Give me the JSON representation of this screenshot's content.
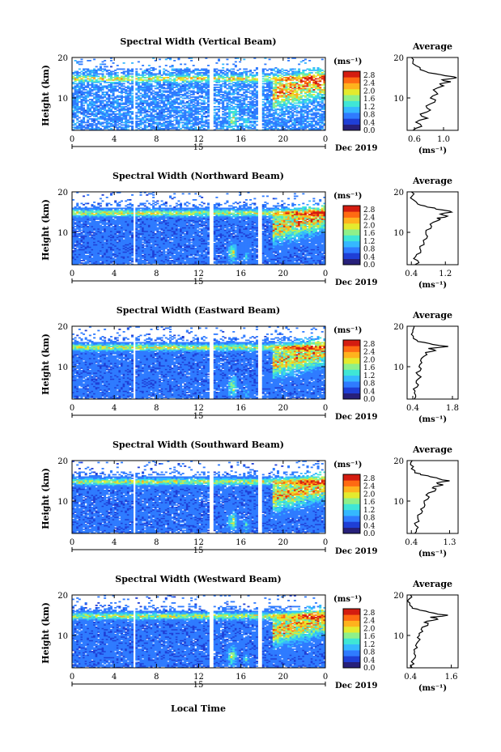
{
  "figure": {
    "xlabel": "Local Time",
    "average_title": "Average",
    "colorbar_unit": "(ms⁻¹)",
    "average_xlabel": "(ms⁻¹)",
    "ylabel": "Height (km)",
    "date_label": "Dec 2019",
    "day_label": "15",
    "colormap": [
      "#27207a",
      "#1f3fd6",
      "#2f7bff",
      "#35b8ff",
      "#3fe6d6",
      "#8ef08a",
      "#e4ea2e",
      "#ffb21d",
      "#ff6a12",
      "#d41c10"
    ]
  },
  "chart_data": [
    {
      "type": "heatmap",
      "title": "Spectral Width (Vertical Beam)",
      "x_ticks": [
        "0",
        "4",
        "8",
        "12",
        "16",
        "20",
        "0"
      ],
      "y_ticks": [
        "20",
        "10"
      ],
      "xlim": [
        0,
        24
      ],
      "ylim": [
        2,
        20
      ],
      "colorbar_ticks": [
        "2.8",
        "2.4",
        "2.0",
        "1.6",
        "1.2",
        "0.8",
        "0.4",
        "0.0"
      ],
      "colorbar_range": [
        0.0,
        3.0
      ],
      "average": {
        "x_ticks": [
          "0.6",
          "1.0"
        ],
        "xlim": [
          0.5,
          1.2
        ],
        "height_km": [
          2,
          3,
          4,
          5,
          6,
          7,
          8,
          9,
          10,
          11,
          12,
          13,
          13.5,
          14,
          14.5,
          15,
          15.5,
          16,
          16.5,
          17,
          18,
          19,
          20
        ],
        "width_ms": [
          0.58,
          0.7,
          0.62,
          0.78,
          0.68,
          0.82,
          0.76,
          0.88,
          0.82,
          0.92,
          0.86,
          1.0,
          0.95,
          1.1,
          0.98,
          1.18,
          1.02,
          0.88,
          0.76,
          0.68,
          0.62,
          0.58,
          0.56
        ]
      }
    },
    {
      "type": "heatmap",
      "title": "Spectral Width (Northward Beam)",
      "x_ticks": [
        "0",
        "4",
        "8",
        "12",
        "16",
        "20",
        "0"
      ],
      "y_ticks": [
        "20",
        "10"
      ],
      "xlim": [
        0,
        24
      ],
      "ylim": [
        2,
        20
      ],
      "colorbar_ticks": [
        "2.8",
        "2.4",
        "2.0",
        "1.6",
        "1.2",
        "0.8",
        "0.4",
        "0.0"
      ],
      "colorbar_range": [
        0.0,
        3.0
      ],
      "average": {
        "x_ticks": [
          "0.4",
          "1.2"
        ],
        "xlim": [
          0.3,
          1.5
        ],
        "height_km": [
          2,
          3,
          4,
          5,
          6,
          7,
          8,
          9,
          10,
          11,
          12,
          13,
          13.5,
          14,
          14.5,
          15,
          15.5,
          16,
          16.5,
          17,
          18,
          19,
          20
        ],
        "width_ms": [
          0.48,
          0.55,
          0.5,
          0.62,
          0.6,
          0.7,
          0.68,
          0.78,
          0.74,
          0.86,
          0.84,
          1.05,
          1.0,
          1.25,
          1.08,
          1.35,
          1.15,
          0.95,
          0.72,
          0.55,
          0.45,
          0.42,
          0.4
        ]
      }
    },
    {
      "type": "heatmap",
      "title": "Spectral Width (Eastward Beam)",
      "x_ticks": [
        "0",
        "4",
        "8",
        "12",
        "16",
        "20",
        "0"
      ],
      "y_ticks": [
        "20",
        "10"
      ],
      "xlim": [
        0,
        24
      ],
      "ylim": [
        2,
        20
      ],
      "colorbar_ticks": [
        "2.8",
        "2.4",
        "2.0",
        "1.6",
        "1.2",
        "0.8",
        "0.4",
        "0.0"
      ],
      "colorbar_range": [
        0.0,
        3.0
      ],
      "average": {
        "x_ticks": [
          "0.4",
          "1.8"
        ],
        "xlim": [
          0.2,
          2.0
        ],
        "height_km": [
          2,
          3,
          4,
          5,
          6,
          7,
          8,
          9,
          10,
          11,
          12,
          13,
          13.5,
          14,
          14.5,
          15,
          15.5,
          16,
          16.5,
          17,
          18,
          19,
          20
        ],
        "width_ms": [
          0.45,
          0.5,
          0.48,
          0.55,
          0.52,
          0.6,
          0.58,
          0.66,
          0.62,
          0.72,
          0.7,
          0.9,
          0.85,
          1.2,
          0.95,
          1.65,
          1.1,
          0.8,
          0.55,
          0.42,
          0.35,
          0.4,
          0.45
        ]
      }
    },
    {
      "type": "heatmap",
      "title": "Spectral Width (Southward Beam)",
      "x_ticks": [
        "0",
        "4",
        "8",
        "12",
        "16",
        "20",
        "0"
      ],
      "y_ticks": [
        "20",
        "10"
      ],
      "xlim": [
        0,
        24
      ],
      "ylim": [
        2,
        20
      ],
      "colorbar_ticks": [
        "2.8",
        "2.4",
        "2.0",
        "1.6",
        "1.2",
        "0.8",
        "0.4",
        "0.0"
      ],
      "colorbar_range": [
        0.0,
        3.0
      ],
      "average": {
        "x_ticks": [
          "0.4",
          "1.3"
        ],
        "xlim": [
          0.3,
          1.5
        ],
        "height_km": [
          2,
          3,
          4,
          5,
          6,
          7,
          8,
          9,
          10,
          11,
          12,
          13,
          13.5,
          14,
          14.5,
          15,
          15.5,
          16,
          16.5,
          17,
          18,
          19,
          20
        ],
        "width_ms": [
          0.48,
          0.52,
          0.5,
          0.58,
          0.55,
          0.64,
          0.62,
          0.72,
          0.7,
          0.82,
          0.8,
          0.98,
          0.92,
          1.15,
          1.0,
          1.3,
          1.05,
          0.85,
          0.62,
          0.48,
          0.4,
          0.38,
          0.42
        ]
      }
    },
    {
      "type": "heatmap",
      "title": "Spectral Width (Westward Beam)",
      "x_ticks": [
        "0",
        "4",
        "8",
        "12",
        "16",
        "20",
        "0"
      ],
      "y_ticks": [
        "20",
        "10"
      ],
      "xlim": [
        0,
        24
      ],
      "ylim": [
        2,
        20
      ],
      "colorbar_ticks": [
        "2.8",
        "2.4",
        "2.0",
        "1.6",
        "1.2",
        "0.8",
        "0.4",
        "0.0"
      ],
      "colorbar_range": [
        0.0,
        3.0
      ],
      "average": {
        "x_ticks": [
          "0.4",
          "1.6"
        ],
        "xlim": [
          0.3,
          1.8
        ],
        "height_km": [
          2,
          3,
          4,
          5,
          6,
          7,
          8,
          9,
          10,
          11,
          12,
          13,
          13.5,
          14,
          14.5,
          15,
          15.5,
          16,
          16.5,
          17,
          18,
          19,
          20
        ],
        "width_ms": [
          0.45,
          0.5,
          0.48,
          0.55,
          0.52,
          0.6,
          0.58,
          0.68,
          0.66,
          0.76,
          0.74,
          0.92,
          0.88,
          1.2,
          0.98,
          1.5,
          1.1,
          0.85,
          0.6,
          0.45,
          0.38,
          0.36,
          0.4
        ]
      }
    }
  ]
}
